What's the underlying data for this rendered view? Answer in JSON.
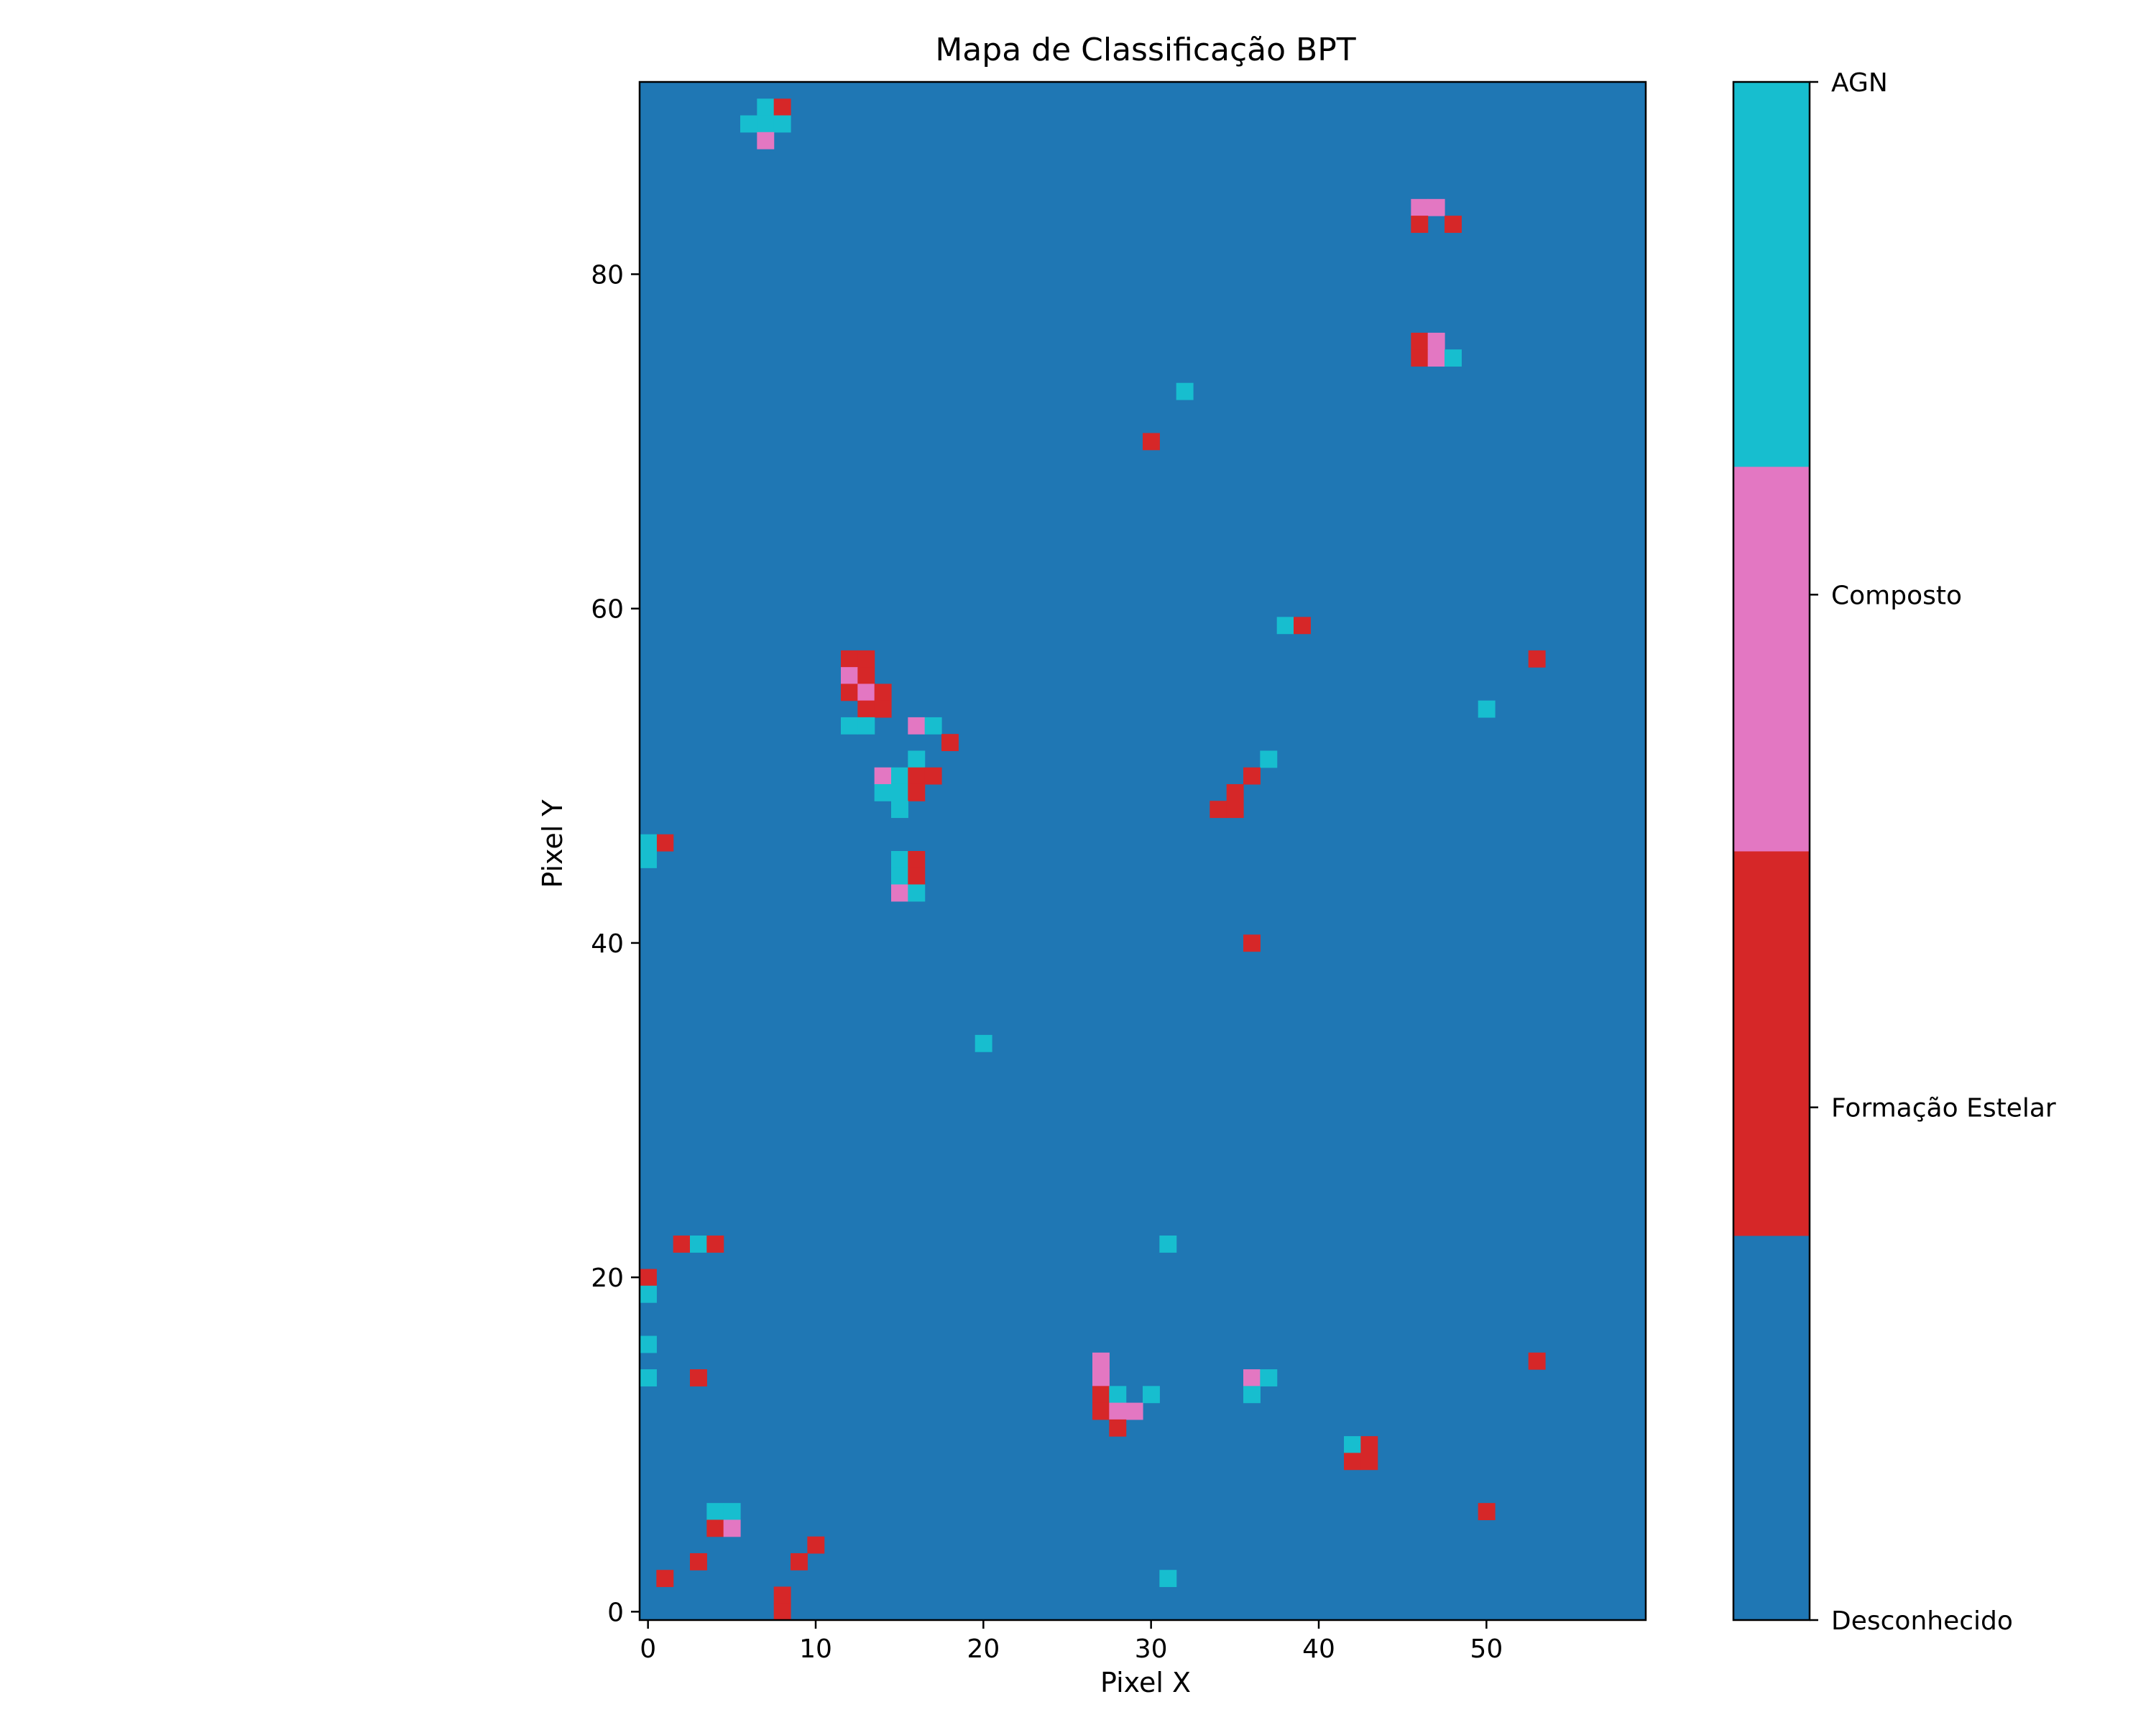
{
  "chart_data": {
    "type": "heatmap",
    "title": "Mapa de Classificação BPT",
    "xlabel": "Pixel X",
    "ylabel": "Pixel Y",
    "xlim": [
      -0.5,
      59.5
    ],
    "ylim": [
      -0.5,
      91.5
    ],
    "x_ticks": [
      0,
      10,
      20,
      30,
      40,
      50
    ],
    "y_ticks": [
      0,
      20,
      40,
      60,
      80
    ],
    "grid_size": {
      "cols": 60,
      "rows": 92
    },
    "background_category": "Desconhecido",
    "categories": [
      {
        "value": 0,
        "label": "Desconhecido",
        "color": "#1f77b4"
      },
      {
        "value": 1,
        "label": "Formação Estelar",
        "color": "#d62728"
      },
      {
        "value": 2,
        "label": "Composto",
        "color": "#e377c2"
      },
      {
        "value": 3,
        "label": "AGN",
        "color": "#17becf"
      }
    ],
    "colorbar": {
      "tick_labels": [
        "Desconhecido",
        "Formação Estelar",
        "Composto",
        "AGN"
      ]
    },
    "cells": [
      [
        7,
        90,
        3
      ],
      [
        8,
        90,
        1
      ],
      [
        6,
        89,
        3
      ],
      [
        7,
        89,
        3
      ],
      [
        8,
        89,
        3
      ],
      [
        7,
        88,
        2
      ],
      [
        46,
        84,
        2
      ],
      [
        47,
        84,
        2
      ],
      [
        46,
        83,
        1
      ],
      [
        48,
        83,
        1
      ],
      [
        46,
        76,
        1
      ],
      [
        47,
        76,
        2
      ],
      [
        46,
        75,
        1
      ],
      [
        47,
        75,
        2
      ],
      [
        48,
        75,
        3
      ],
      [
        32,
        73,
        3
      ],
      [
        30,
        70,
        1
      ],
      [
        38,
        59,
        3
      ],
      [
        39,
        59,
        1
      ],
      [
        53,
        57,
        1
      ],
      [
        12,
        57,
        1
      ],
      [
        13,
        57,
        1
      ],
      [
        12,
        56,
        2
      ],
      [
        13,
        56,
        1
      ],
      [
        12,
        55,
        1
      ],
      [
        13,
        55,
        2
      ],
      [
        14,
        55,
        1
      ],
      [
        13,
        54,
        1
      ],
      [
        14,
        54,
        1
      ],
      [
        50,
        54,
        3
      ],
      [
        12,
        53,
        3
      ],
      [
        13,
        53,
        3
      ],
      [
        16,
        53,
        2
      ],
      [
        17,
        53,
        3
      ],
      [
        18,
        52,
        1
      ],
      [
        16,
        51,
        3
      ],
      [
        37,
        51,
        3
      ],
      [
        14,
        50,
        2
      ],
      [
        15,
        50,
        3
      ],
      [
        16,
        50,
        1
      ],
      [
        17,
        50,
        1
      ],
      [
        36,
        50,
        1
      ],
      [
        14,
        49,
        3
      ],
      [
        15,
        49,
        3
      ],
      [
        16,
        49,
        1
      ],
      [
        35,
        49,
        1
      ],
      [
        15,
        48,
        3
      ],
      [
        34,
        48,
        1
      ],
      [
        35,
        48,
        1
      ],
      [
        1,
        46,
        1
      ],
      [
        0,
        46,
        3
      ],
      [
        0,
        45,
        3
      ],
      [
        15,
        45,
        3
      ],
      [
        16,
        45,
        1
      ],
      [
        15,
        44,
        3
      ],
      [
        16,
        44,
        1
      ],
      [
        15,
        43,
        2
      ],
      [
        16,
        43,
        3
      ],
      [
        36,
        40,
        1
      ],
      [
        20,
        34,
        3
      ],
      [
        2,
        22,
        1
      ],
      [
        3,
        22,
        3
      ],
      [
        4,
        22,
        1
      ],
      [
        31,
        22,
        3
      ],
      [
        0,
        20,
        1
      ],
      [
        0,
        19,
        3
      ],
      [
        0,
        16,
        3
      ],
      [
        27,
        15,
        2
      ],
      [
        53,
        15,
        1
      ],
      [
        27,
        14,
        2
      ],
      [
        36,
        14,
        2
      ],
      [
        37,
        14,
        3
      ],
      [
        0,
        14,
        3
      ],
      [
        3,
        14,
        1
      ],
      [
        27,
        13,
        1
      ],
      [
        28,
        13,
        3
      ],
      [
        30,
        13,
        3
      ],
      [
        36,
        13,
        3
      ],
      [
        27,
        12,
        1
      ],
      [
        28,
        12,
        2
      ],
      [
        29,
        12,
        2
      ],
      [
        28,
        11,
        1
      ],
      [
        42,
        10,
        3
      ],
      [
        43,
        10,
        1
      ],
      [
        42,
        9,
        1
      ],
      [
        43,
        9,
        1
      ],
      [
        4,
        6,
        3
      ],
      [
        5,
        6,
        3
      ],
      [
        50,
        6,
        1
      ],
      [
        4,
        5,
        1
      ],
      [
        5,
        5,
        2
      ],
      [
        10,
        4,
        1
      ],
      [
        3,
        3,
        1
      ],
      [
        9,
        3,
        1
      ],
      [
        1,
        2,
        1
      ],
      [
        31,
        2,
        3
      ],
      [
        8,
        1,
        1
      ],
      [
        8,
        0,
        1
      ]
    ]
  }
}
